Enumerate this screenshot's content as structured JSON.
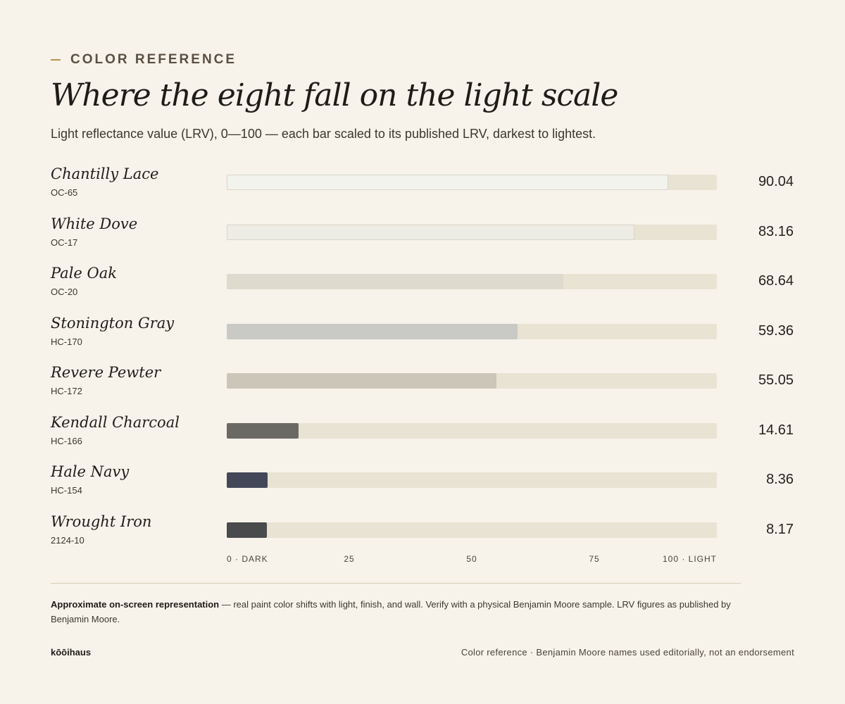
{
  "header": {
    "eyebrow": "COLOR REFERENCE",
    "title": "Where the eight fall on the light scale",
    "subtitle": "Light reflectance value (LRV), 0—100 — each bar scaled to its published LRV, darkest to lightest."
  },
  "chart_data": {
    "type": "bar",
    "orientation": "horizontal",
    "title": "Where the eight fall on the light scale",
    "subtitle": "Light reflectance value (LRV), 0—100 — each bar scaled to its published LRV, darkest to lightest.",
    "xlim": [
      0,
      100
    ],
    "grid": false,
    "legend": "none",
    "track_color": "#e9e3d4",
    "ticks": [
      {
        "value": 0,
        "label": "0 · DARK"
      },
      {
        "value": 25,
        "label": "25"
      },
      {
        "value": 50,
        "label": "50"
      },
      {
        "value": 75,
        "label": "75"
      },
      {
        "value": 100,
        "label": "100 · LIGHT"
      }
    ],
    "bars": [
      {
        "name": "Chantilly Lace",
        "code": "OC-65",
        "value": 90.04,
        "label": "90.04",
        "color": "#f3f3ee",
        "outlined": true
      },
      {
        "name": "White Dove",
        "code": "OC-17",
        "value": 83.16,
        "label": "83.16",
        "color": "#eeede5",
        "outlined": true
      },
      {
        "name": "Pale Oak",
        "code": "OC-20",
        "value": 68.64,
        "label": "68.64",
        "color": "#dedbce",
        "outlined": false
      },
      {
        "name": "Stonington Gray",
        "code": "HC-170",
        "value": 59.36,
        "label": "59.36",
        "color": "#c9c9c5",
        "outlined": false
      },
      {
        "name": "Revere Pewter",
        "code": "HC-172",
        "value": 55.05,
        "label": "55.05",
        "color": "#cbc6b7",
        "outlined": false
      },
      {
        "name": "Kendall Charcoal",
        "code": "HC-166",
        "value": 14.61,
        "label": "14.61",
        "color": "#6b6964",
        "outlined": false
      },
      {
        "name": "Hale Navy",
        "code": "HC-154",
        "value": 8.36,
        "label": "8.36",
        "color": "#434858",
        "outlined": false
      },
      {
        "name": "Wrought Iron",
        "code": "2124-10",
        "value": 8.17,
        "label": "8.17",
        "color": "#4a4b4d",
        "outlined": false
      }
    ]
  },
  "note": {
    "bold": "Approximate on-screen representation",
    "text": " — real paint color shifts with light, finish, and wall. Verify with a physical Benjamin Moore sample. LRV figures as published by Benjamin Moore."
  },
  "footer": {
    "brand": "kōōihaus",
    "right": "Color reference · Benjamin Moore names used editorially, not an endorsement"
  },
  "colors": {
    "background": "#f7f3ea",
    "accent": "#b8924f",
    "rule": "#d8ccb4"
  }
}
